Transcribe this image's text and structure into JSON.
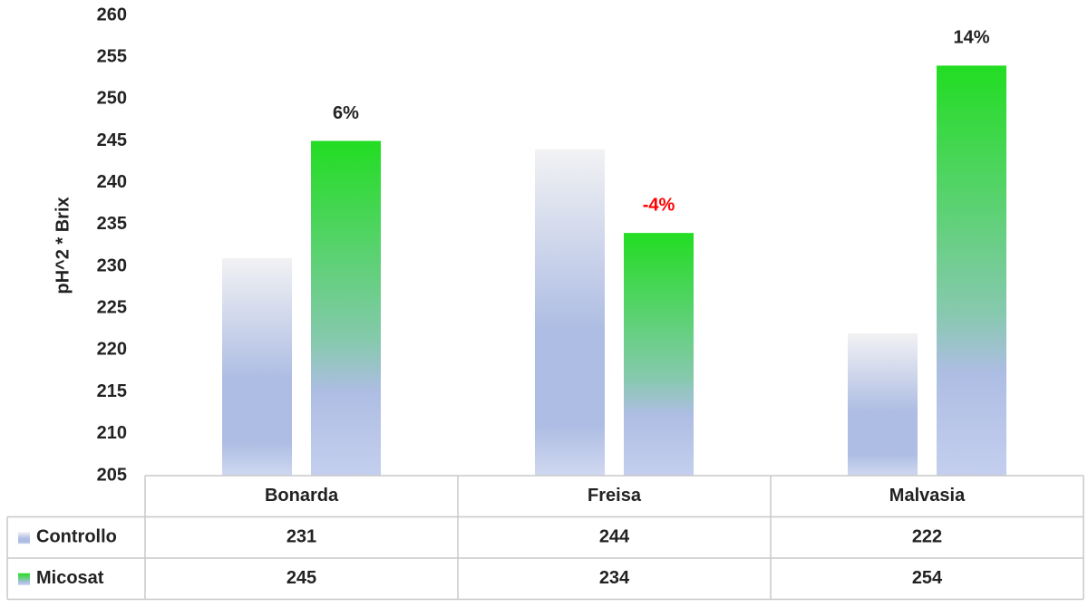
{
  "chart_data": {
    "type": "bar",
    "y_label": "pH^2 * Brix",
    "categories": [
      "Bonarda",
      "Freisa",
      "Malvasia"
    ],
    "series": [
      {
        "name": "Controllo",
        "color": "#aebde3",
        "values": [
          231,
          244,
          222
        ]
      },
      {
        "name": "Micosat",
        "color": "#22dd22",
        "values": [
          245,
          234,
          254
        ]
      }
    ],
    "annotations": [
      {
        "text": "6%",
        "color": "#222222"
      },
      {
        "text": "-4%",
        "color": "#ff0000"
      },
      {
        "text": "14%",
        "color": "#222222"
      }
    ],
    "ylim": [
      205,
      260
    ],
    "yticks": [
      205,
      210,
      215,
      220,
      225,
      230,
      235,
      240,
      245,
      250,
      255,
      260
    ]
  }
}
